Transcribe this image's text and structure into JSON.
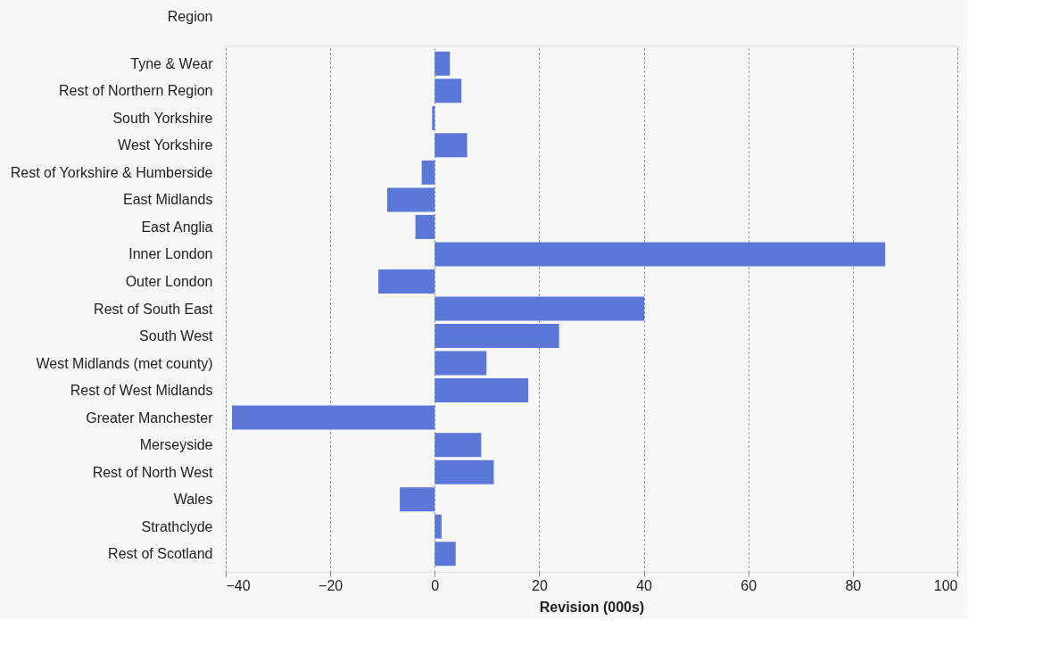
{
  "chart_data": {
    "type": "bar",
    "orientation": "horizontal",
    "ylabel": "Region",
    "xlabel": "Revision (000s)",
    "categories": [
      "Tyne & Wear",
      "Rest of Northern Region",
      "South Yorkshire",
      "West Yorkshire",
      "Rest of Yorkshire & Humberside",
      "East Midlands",
      "East Anglia",
      "Inner London",
      "Outer London",
      "Rest of South East",
      "South West",
      "West Midlands (met county)",
      "Rest of West Midlands",
      "Greater Manchester",
      "Merseyside",
      "Rest of North West",
      "Wales",
      "Strathclyde",
      "Rest of Scotland"
    ],
    "values": [
      2.9,
      5.1,
      -0.5,
      6.2,
      -2.5,
      -9.1,
      -3.7,
      86.2,
      -10.8,
      40.1,
      23.8,
      9.9,
      17.9,
      -38.8,
      8.9,
      11.3,
      -6.7,
      1.3,
      4.0
    ],
    "color": "#5b78d8",
    "xlim": [
      -40,
      100
    ],
    "xticks": [
      -40,
      -20,
      0,
      20,
      40,
      60,
      80,
      100
    ],
    "grid": "x"
  }
}
